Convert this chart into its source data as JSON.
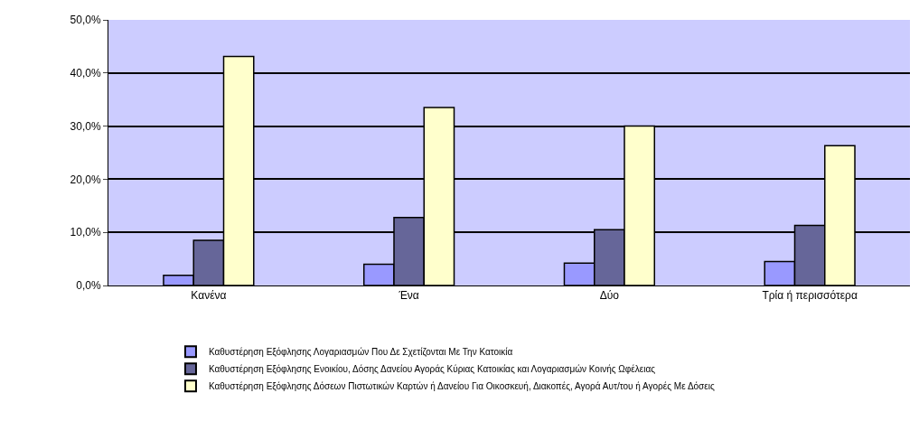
{
  "chart_data": {
    "type": "bar",
    "categories": [
      "Κανένα",
      "Ένα",
      "Δύο",
      "Τρία ή περισσότερα"
    ],
    "series": [
      {
        "name": "Καθυστέρηση Εξόφλησης Λογαριασμών Που Δε Σχετίζονται Με Την Κατοικία",
        "color": "#9999ff",
        "values": [
          1.9,
          4.0,
          4.2,
          4.5
        ]
      },
      {
        "name": "Καθυστέρηση Εξόφλησης Ενοικίου, Δόσης Δανείου Αγοράς Κύριας Κατοικίας και Λογαριασμών Κοινής Ωφέλειας",
        "color": "#666699",
        "values": [
          8.5,
          12.8,
          10.5,
          11.3
        ]
      },
      {
        "name": "Καθυστέρηση Εξόφλησης Δόσεων Πιστωτικών Καρτών ή Δανείου Για Οικοσκευή, Διακοπές, Αγορά Αυτ/του ή Αγορές Με Δόσεις",
        "color": "#ffffcc",
        "values": [
          43.1,
          33.5,
          30.0,
          26.3
        ]
      }
    ],
    "ylim": [
      0,
      50
    ],
    "yticks": [
      {
        "value": 0,
        "label": "0,0%"
      },
      {
        "value": 10,
        "label": "10,0%"
      },
      {
        "value": 20,
        "label": "20,0%"
      },
      {
        "value": 30,
        "label": "30,0%"
      },
      {
        "value": 40,
        "label": "40,0%"
      },
      {
        "value": 50,
        "label": "50,0%"
      }
    ],
    "grid": "y",
    "legend": "bottom"
  }
}
